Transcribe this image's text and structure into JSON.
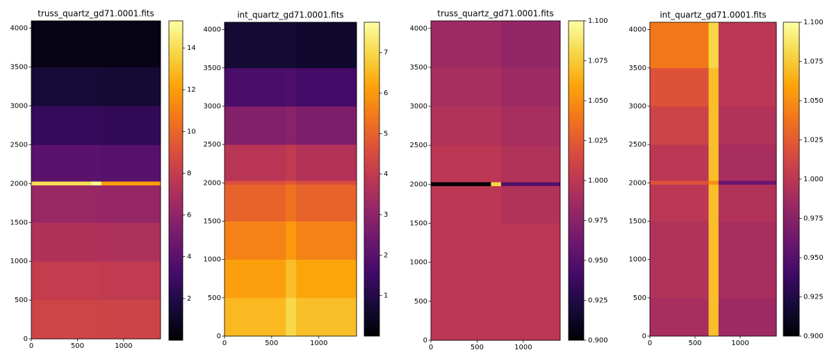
{
  "chart_data": [
    {
      "type": "heatmap",
      "title": "truss_quartz_gd71.0001.fits",
      "colormap": "inferno",
      "xlim": [
        0,
        1400
      ],
      "ylim": [
        0,
        4096
      ],
      "xticks": [
        0,
        500,
        1000
      ],
      "yticks": [
        0,
        500,
        1000,
        1500,
        2000,
        2500,
        3000,
        3500,
        4000
      ],
      "xbins": [
        0,
        650,
        760,
        1400
      ],
      "ybins": [
        0,
        500,
        1000,
        1500,
        1980,
        2030,
        2500,
        3000,
        3500,
        4096
      ],
      "z": [
        [
          8.5,
          8.5,
          8.4
        ],
        [
          8,
          8,
          7.9
        ],
        [
          7.2,
          7.2,
          7.1
        ],
        [
          6.3,
          6.3,
          6.2
        ],
        [
          14,
          15,
          12
        ],
        [
          4,
          4,
          3.9
        ],
        [
          2.6,
          2.6,
          2.5
        ],
        [
          1.5,
          1.5,
          1.4
        ],
        [
          0.5,
          0.5,
          0.5
        ]
      ],
      "clim": [
        0,
        15.3
      ],
      "cticks": [
        2,
        4,
        6,
        8,
        10,
        12,
        14
      ]
    },
    {
      "type": "heatmap",
      "title": "int_quartz_gd71.0001.fits",
      "colormap": "inferno",
      "xlim": [
        0,
        1400
      ],
      "ylim": [
        0,
        4096
      ],
      "xticks": [
        0,
        500,
        1000
      ],
      "yticks": [
        0,
        500,
        1000,
        1500,
        2000,
        2500,
        3000,
        3500,
        4000
      ],
      "xbins": [
        0,
        650,
        760,
        1400
      ],
      "ybins": [
        0,
        500,
        1000,
        1500,
        1980,
        2030,
        2500,
        3000,
        3500,
        4096
      ],
      "z": [
        [
          6.5,
          7,
          6.6
        ],
        [
          6.1,
          6.6,
          6.2
        ],
        [
          5.6,
          6,
          5.6
        ],
        [
          5,
          5.3,
          5
        ],
        [
          4.6,
          4.8,
          4.5
        ],
        [
          3.8,
          4,
          3.7
        ],
        [
          2.8,
          2.9,
          2.7
        ],
        [
          1.7,
          1.8,
          1.6
        ],
        [
          0.7,
          0.7,
          0.6
        ]
      ],
      "clim": [
        0,
        7.75
      ],
      "cticks": [
        1,
        2,
        3,
        4,
        5,
        6,
        7
      ]
    },
    {
      "type": "heatmap",
      "title": "truss_quartz_gd71.0001.fits",
      "colormap": "inferno",
      "xlim": [
        0,
        1400
      ],
      "ylim": [
        0,
        4096
      ],
      "xticks": [
        0,
        500,
        1000
      ],
      "yticks": [
        0,
        500,
        1000,
        1500,
        2000,
        2500,
        3000,
        3500,
        4000
      ],
      "xbins": [
        0,
        650,
        760,
        1400
      ],
      "ybins": [
        0,
        500,
        1000,
        1500,
        1980,
        2030,
        2500,
        3000,
        3500,
        4096
      ],
      "z": [
        [
          1.0,
          1.0,
          1.0
        ],
        [
          1.0,
          1.0,
          1.0
        ],
        [
          1.0,
          1.0,
          1.0
        ],
        [
          1.0,
          1.0,
          0.995
        ],
        [
          0.9,
          1.08,
          0.95
        ],
        [
          1.0,
          1.0,
          0.995
        ],
        [
          0.995,
          0.995,
          0.99
        ],
        [
          0.99,
          0.99,
          0.985
        ],
        [
          0.985,
          0.985,
          0.98
        ]
      ],
      "clim": [
        0.9,
        1.1
      ],
      "cticks": [
        {
          "value": 0.9,
          "label": "0.900"
        },
        {
          "value": 0.925,
          "label": "0.925"
        },
        {
          "value": 0.95,
          "label": "0.950"
        },
        {
          "value": 0.975,
          "label": "0.975"
        },
        {
          "value": 1.0,
          "label": "1.000"
        },
        {
          "value": 1.025,
          "label": "1.025"
        },
        {
          "value": 1.05,
          "label": "1.050"
        },
        {
          "value": 1.075,
          "label": "1.075"
        },
        {
          "value": 1.1,
          "label": "1.100"
        }
      ]
    },
    {
      "type": "heatmap",
      "title": "int_quartz_gd71.0001.fits",
      "colormap": "inferno",
      "xlim": [
        0,
        1400
      ],
      "ylim": [
        0,
        4096
      ],
      "xticks": [
        0,
        500,
        1000
      ],
      "yticks": [
        0,
        500,
        1000,
        1500,
        2000,
        2500,
        3000,
        3500,
        4000
      ],
      "xbins": [
        0,
        650,
        760,
        1400
      ],
      "ybins": [
        0,
        500,
        1000,
        1500,
        1980,
        2030,
        2500,
        3000,
        3500,
        4096
      ],
      "z": [
        [
          0.99,
          1.07,
          0.985
        ],
        [
          0.995,
          1.07,
          0.99
        ],
        [
          0.995,
          1.07,
          0.99
        ],
        [
          1.0,
          1.07,
          0.995
        ],
        [
          1.02,
          1.05,
          0.96
        ],
        [
          1.0,
          1.07,
          0.99
        ],
        [
          1.01,
          1.07,
          0.995
        ],
        [
          1.02,
          1.07,
          1.0
        ],
        [
          1.04,
          1.08,
          1.0
        ]
      ],
      "clim": [
        0.9,
        1.1
      ],
      "cticks": [
        {
          "value": 0.9,
          "label": "0.900"
        },
        {
          "value": 0.925,
          "label": "0.925"
        },
        {
          "value": 0.95,
          "label": "0.950"
        },
        {
          "value": 0.975,
          "label": "0.975"
        },
        {
          "value": 1.0,
          "label": "1.000"
        },
        {
          "value": 1.025,
          "label": "1.025"
        },
        {
          "value": 1.05,
          "label": "1.050"
        },
        {
          "value": 1.075,
          "label": "1.075"
        },
        {
          "value": 1.1,
          "label": "1.100"
        }
      ]
    }
  ]
}
